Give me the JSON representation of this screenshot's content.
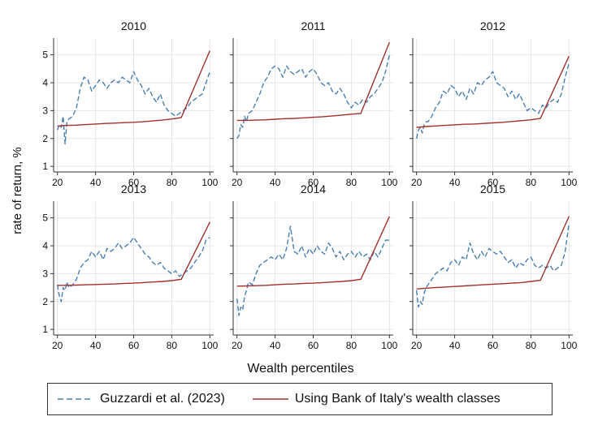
{
  "chart_data": {
    "type": "line",
    "ylabel": "rate of return, %",
    "xlabel": "Wealth percentiles",
    "xlim": [
      18,
      102
    ],
    "ylim": [
      0.8,
      5.6
    ],
    "xticks": [
      20,
      40,
      60,
      80,
      100
    ],
    "yticks": [
      1,
      2,
      3,
      4,
      5
    ],
    "grid": true,
    "legend_position": "bottom",
    "series_styles": [
      {
        "name": "Guzzardi et al. (2023)",
        "color": "#4a7fb0",
        "dash": "dashed"
      },
      {
        "name": "Using Bank of Italy's wealth classes",
        "color": "#a0312f",
        "dash": "solid"
      }
    ],
    "panels": [
      {
        "title": "2010",
        "series": [
          {
            "name": "Guzzardi et al. (2023)",
            "x": [
              20,
              21,
              22,
              23,
              24,
              25,
              26,
              28,
              30,
              32,
              34,
              36,
              38,
              40,
              42,
              44,
              46,
              48,
              50,
              52,
              54,
              56,
              58,
              60,
              62,
              64,
              66,
              68,
              70,
              72,
              74,
              76,
              78,
              80,
              82,
              84,
              86,
              88,
              90,
              92,
              94,
              96,
              98,
              100
            ],
            "y": [
              2.3,
              2.5,
              2.4,
              2.8,
              1.8,
              2.6,
              2.7,
              2.8,
              3.1,
              3.8,
              4.2,
              4.1,
              3.7,
              3.9,
              4.1,
              4.0,
              3.8,
              4.0,
              4.1,
              4.0,
              4.2,
              4.1,
              4.0,
              4.4,
              4.1,
              3.9,
              3.6,
              3.8,
              3.5,
              3.3,
              3.6,
              3.2,
              3.0,
              2.9,
              2.8,
              2.9,
              3.0,
              3.1,
              3.3,
              3.4,
              3.5,
              3.6,
              4.0,
              4.4
            ]
          },
          {
            "name": "Using Bank of Italy's wealth classes",
            "x": [
              20,
              25,
              30,
              35,
              40,
              45,
              50,
              55,
              60,
              65,
              70,
              75,
              80,
              85,
              100
            ],
            "y": [
              2.45,
              2.47,
              2.48,
              2.5,
              2.52,
              2.54,
              2.55,
              2.57,
              2.58,
              2.6,
              2.63,
              2.66,
              2.7,
              2.75,
              5.15
            ]
          }
        ]
      },
      {
        "title": "2011",
        "series": [
          {
            "name": "Guzzardi et al. (2023)",
            "x": [
              20,
              21,
              22,
              23,
              24,
              25,
              26,
              28,
              30,
              32,
              34,
              36,
              38,
              40,
              42,
              44,
              46,
              48,
              50,
              52,
              54,
              56,
              58,
              60,
              62,
              64,
              66,
              68,
              70,
              72,
              74,
              76,
              78,
              80,
              82,
              84,
              86,
              88,
              90,
              92,
              94,
              96,
              98,
              100
            ],
            "y": [
              2.0,
              2.1,
              2.5,
              2.4,
              2.8,
              2.6,
              2.9,
              3.0,
              3.3,
              3.6,
              4.0,
              4.2,
              4.5,
              4.6,
              4.5,
              4.2,
              4.6,
              4.4,
              4.3,
              4.4,
              4.5,
              4.2,
              4.4,
              4.5,
              4.3,
              4.0,
              3.9,
              4.0,
              3.7,
              3.6,
              3.8,
              3.6,
              3.3,
              3.1,
              3.3,
              3.2,
              3.4,
              3.3,
              3.5,
              3.6,
              3.8,
              4.0,
              4.4,
              5.0
            ]
          },
          {
            "name": "Using Bank of Italy's wealth classes",
            "x": [
              20,
              25,
              30,
              35,
              40,
              45,
              50,
              55,
              60,
              65,
              70,
              75,
              80,
              85,
              100
            ],
            "y": [
              2.65,
              2.65,
              2.66,
              2.67,
              2.69,
              2.71,
              2.72,
              2.74,
              2.76,
              2.78,
              2.81,
              2.84,
              2.87,
              2.9,
              5.45
            ]
          }
        ]
      },
      {
        "title": "2012",
        "series": [
          {
            "name": "Guzzardi et al. (2023)",
            "x": [
              20,
              21,
              22,
              23,
              24,
              25,
              26,
              28,
              30,
              32,
              34,
              36,
              38,
              40,
              42,
              44,
              46,
              48,
              50,
              52,
              54,
              56,
              58,
              60,
              62,
              64,
              66,
              68,
              70,
              72,
              74,
              76,
              78,
              80,
              82,
              84,
              86,
              88,
              90,
              92,
              94,
              96,
              98,
              100
            ],
            "y": [
              2.0,
              2.3,
              2.4,
              2.2,
              2.5,
              2.6,
              2.6,
              2.8,
              3.1,
              3.3,
              3.7,
              3.6,
              3.9,
              3.8,
              3.5,
              3.7,
              3.4,
              3.8,
              3.6,
              4.0,
              3.9,
              4.1,
              4.2,
              4.4,
              4.0,
              3.9,
              3.8,
              3.5,
              3.7,
              3.4,
              3.6,
              3.3,
              3.0,
              3.1,
              3.0,
              2.9,
              3.2,
              3.1,
              3.3,
              3.4,
              3.3,
              3.6,
              4.2,
              4.7
            ]
          },
          {
            "name": "Using Bank of Italy's wealth classes",
            "x": [
              20,
              25,
              30,
              35,
              40,
              45,
              50,
              55,
              60,
              65,
              70,
              75,
              80,
              85,
              100
            ],
            "y": [
              2.4,
              2.43,
              2.45,
              2.47,
              2.49,
              2.51,
              2.52,
              2.54,
              2.56,
              2.58,
              2.61,
              2.64,
              2.67,
              2.72,
              4.95
            ]
          }
        ]
      },
      {
        "title": "2013",
        "series": [
          {
            "name": "Guzzardi et al. (2023)",
            "x": [
              20,
              21,
              22,
              23,
              24,
              25,
              26,
              28,
              30,
              32,
              34,
              36,
              38,
              40,
              42,
              44,
              46,
              48,
              50,
              52,
              54,
              56,
              58,
              60,
              62,
              64,
              66,
              68,
              70,
              72,
              74,
              76,
              78,
              80,
              82,
              84,
              86,
              88,
              90,
              92,
              94,
              96,
              98,
              100
            ],
            "y": [
              2.6,
              2.2,
              2.0,
              2.5,
              2.4,
              2.7,
              2.5,
              2.6,
              2.8,
              3.2,
              3.4,
              3.5,
              3.8,
              3.6,
              3.8,
              3.5,
              3.9,
              3.8,
              3.9,
              4.1,
              3.9,
              4.0,
              4.1,
              4.3,
              4.1,
              3.9,
              3.7,
              3.6,
              3.4,
              3.3,
              3.4,
              3.2,
              3.1,
              3.0,
              3.1,
              2.9,
              3.0,
              3.1,
              3.2,
              3.4,
              3.6,
              3.8,
              4.2,
              4.3
            ]
          },
          {
            "name": "Using Bank of Italy's wealth classes",
            "x": [
              20,
              25,
              30,
              35,
              40,
              45,
              50,
              55,
              60,
              65,
              70,
              75,
              80,
              85,
              100
            ],
            "y": [
              2.58,
              2.58,
              2.59,
              2.6,
              2.61,
              2.62,
              2.63,
              2.65,
              2.66,
              2.68,
              2.7,
              2.72,
              2.75,
              2.8,
              4.85
            ]
          }
        ]
      },
      {
        "title": "2014",
        "series": [
          {
            "name": "Guzzardi et al. (2023)",
            "x": [
              20,
              21,
              22,
              23,
              24,
              25,
              26,
              28,
              30,
              32,
              34,
              36,
              38,
              40,
              42,
              44,
              46,
              48,
              50,
              52,
              54,
              56,
              58,
              60,
              62,
              64,
              66,
              68,
              70,
              72,
              74,
              76,
              78,
              80,
              82,
              84,
              86,
              88,
              90,
              92,
              94,
              96,
              98,
              100
            ],
            "y": [
              2.1,
              1.5,
              1.8,
              1.7,
              2.2,
              2.4,
              2.7,
              2.6,
              3.0,
              3.3,
              3.4,
              3.5,
              3.6,
              3.5,
              3.7,
              3.5,
              3.9,
              4.7,
              3.8,
              3.7,
              4.0,
              3.6,
              3.9,
              3.7,
              4.0,
              3.8,
              3.7,
              4.1,
              3.9,
              3.6,
              3.8,
              3.5,
              3.7,
              3.8,
              3.6,
              3.8,
              3.6,
              3.7,
              3.5,
              3.8,
              3.6,
              3.9,
              4.2,
              4.2
            ]
          },
          {
            "name": "Using Bank of Italy's wealth classes",
            "x": [
              20,
              25,
              30,
              35,
              40,
              45,
              50,
              55,
              60,
              65,
              70,
              75,
              80,
              85,
              100
            ],
            "y": [
              2.55,
              2.56,
              2.57,
              2.58,
              2.6,
              2.62,
              2.63,
              2.65,
              2.66,
              2.68,
              2.7,
              2.72,
              2.75,
              2.8,
              5.05
            ]
          }
        ]
      },
      {
        "title": "2015",
        "series": [
          {
            "name": "Guzzardi et al. (2023)",
            "x": [
              20,
              21,
              22,
              23,
              24,
              25,
              26,
              28,
              30,
              32,
              34,
              36,
              38,
              40,
              42,
              44,
              46,
              48,
              50,
              52,
              54,
              56,
              58,
              60,
              62,
              64,
              66,
              68,
              70,
              72,
              74,
              76,
              78,
              80,
              82,
              84,
              86,
              88,
              90,
              92,
              94,
              96,
              98,
              100
            ],
            "y": [
              2.4,
              1.8,
              2.0,
              1.9,
              2.3,
              2.5,
              2.6,
              2.8,
              3.0,
              3.1,
              3.2,
              3.1,
              3.4,
              3.5,
              3.3,
              3.6,
              3.5,
              4.1,
              3.7,
              3.5,
              3.8,
              3.6,
              3.9,
              3.8,
              3.7,
              3.8,
              3.6,
              3.4,
              3.5,
              3.2,
              3.4,
              3.3,
              3.5,
              3.6,
              3.3,
              3.2,
              3.3,
              3.2,
              3.3,
              3.1,
              3.2,
              3.3,
              3.8,
              4.8
            ]
          },
          {
            "name": "Using Bank of Italy's wealth classes",
            "x": [
              20,
              25,
              30,
              35,
              40,
              45,
              50,
              55,
              60,
              65,
              70,
              75,
              80,
              85,
              100
            ],
            "y": [
              2.45,
              2.48,
              2.5,
              2.52,
              2.54,
              2.56,
              2.58,
              2.6,
              2.62,
              2.64,
              2.66,
              2.68,
              2.72,
              2.76,
              5.05
            ]
          }
        ]
      }
    ]
  }
}
